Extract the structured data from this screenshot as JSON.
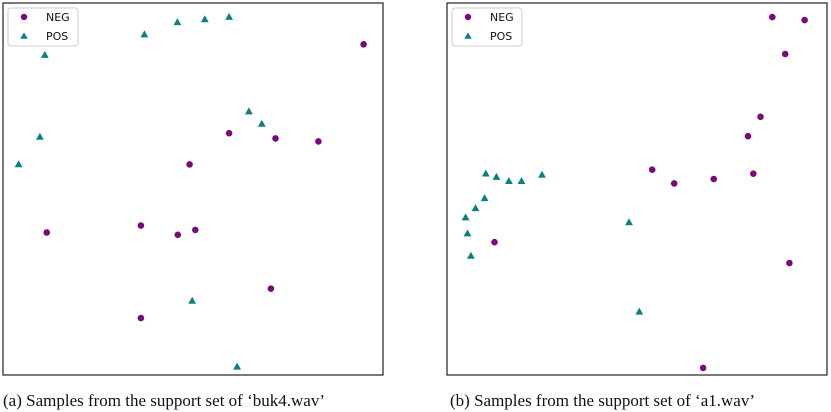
{
  "colors": {
    "neg": "#7a0a7a",
    "pos": "#0b8080"
  },
  "chart_data": [
    {
      "type": "scatter",
      "caption": "(a) Samples from the support set of ‘buk4.wav’",
      "xlim": [
        0,
        1
      ],
      "ylim": [
        0,
        1
      ],
      "grid": false,
      "axes_ticks": false,
      "legend_position": "top-left",
      "series": [
        {
          "name": "NEG",
          "marker": "circle",
          "color": "#7a0a7a",
          "points": [
            [
              0.949,
              0.889
            ],
            [
              0.595,
              0.65
            ],
            [
              0.717,
              0.636
            ],
            [
              0.83,
              0.628
            ],
            [
              0.491,
              0.566
            ],
            [
              0.115,
              0.383
            ],
            [
              0.363,
              0.402
            ],
            [
              0.46,
              0.377
            ],
            [
              0.506,
              0.39
            ],
            [
              0.705,
              0.232
            ],
            [
              0.363,
              0.153
            ]
          ]
        },
        {
          "name": "POS",
          "marker": "triangle",
          "color": "#0b8080",
          "points": [
            [
              0.595,
              0.962
            ],
            [
              0.531,
              0.956
            ],
            [
              0.459,
              0.948
            ],
            [
              0.372,
              0.915
            ],
            [
              0.11,
              0.86
            ],
            [
              0.647,
              0.708
            ],
            [
              0.681,
              0.675
            ],
            [
              0.097,
              0.64
            ],
            [
              0.041,
              0.566
            ],
            [
              0.498,
              0.199
            ],
            [
              0.616,
              0.022
            ]
          ]
        }
      ]
    },
    {
      "type": "scatter",
      "caption": "(b) Samples from the support set of ‘a1.wav’",
      "xlim": [
        0,
        1
      ],
      "ylim": [
        0,
        1
      ],
      "grid": false,
      "axes_ticks": false,
      "legend_position": "top-left",
      "series": [
        {
          "name": "NEG",
          "marker": "circle",
          "color": "#7a0a7a",
          "points": [
            [
              0.856,
              0.962
            ],
            [
              0.941,
              0.954
            ],
            [
              0.89,
              0.863
            ],
            [
              0.825,
              0.694
            ],
            [
              0.792,
              0.642
            ],
            [
              0.54,
              0.552
            ],
            [
              0.598,
              0.515
            ],
            [
              0.702,
              0.527
            ],
            [
              0.806,
              0.541
            ],
            [
              0.125,
              0.357
            ],
            [
              0.901,
              0.301
            ],
            [
              0.674,
              0.019
            ]
          ]
        },
        {
          "name": "POS",
          "marker": "triangle",
          "color": "#0b8080",
          "points": [
            [
              0.102,
              0.541
            ],
            [
              0.13,
              0.532
            ],
            [
              0.163,
              0.521
            ],
            [
              0.196,
              0.521
            ],
            [
              0.25,
              0.538
            ],
            [
              0.099,
              0.475
            ],
            [
              0.075,
              0.448
            ],
            [
              0.049,
              0.423
            ],
            [
              0.054,
              0.38
            ],
            [
              0.063,
              0.32
            ],
            [
              0.479,
              0.41
            ],
            [
              0.506,
              0.17
            ]
          ]
        }
      ]
    }
  ]
}
